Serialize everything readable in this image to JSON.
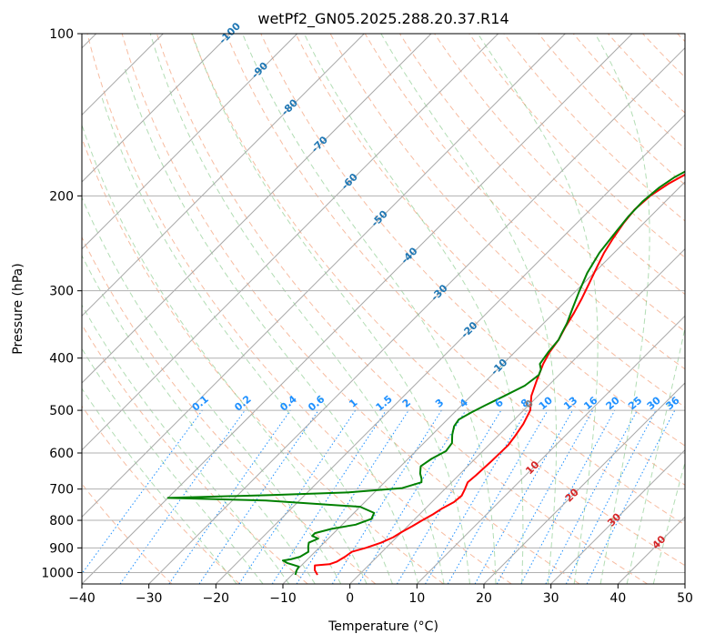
{
  "chart_data": {
    "type": "line",
    "title": "wetPf2_GN05.2025.288.20.37.R14",
    "xlabel": "Temperature (°C)",
    "ylabel": "Pressure (hPa)",
    "xlim": [
      -40,
      50
    ],
    "ylim": [
      1050,
      100
    ],
    "y_scale": "log",
    "grid": true,
    "x_ticks": [
      -40,
      -30,
      -20,
      -10,
      0,
      10,
      20,
      30,
      40,
      50
    ],
    "y_ticks": [
      1000,
      900,
      800,
      700,
      600,
      500,
      400,
      300,
      200,
      100
    ],
    "temperature_color": "#ff0000",
    "dewpoint_color": "#008000",
    "isotherm_label_color": "#1f77b4",
    "mixing_ratio_color": "#1e90ff",
    "moist_label_color": "#d62728",
    "mixing_ratio_labels": [
      "0.1",
      "0.2",
      "0.4",
      "0.6",
      "1",
      "1.5",
      "2",
      "3",
      "4",
      "6",
      "8",
      "10",
      "13",
      "16",
      "20",
      "25",
      "30",
      "36"
    ],
    "mixing_ratio_values": [
      0.1,
      0.2,
      0.4,
      0.6,
      1,
      1.5,
      2,
      3,
      4,
      6,
      8,
      10,
      13,
      16,
      20,
      25,
      30,
      36
    ],
    "isotherm_labels": [
      "-100",
      "-90",
      "-80",
      "-70",
      "-60",
      "-50",
      "-40",
      "-30",
      "-20",
      "-10",
      "0"
    ],
    "isotherm_values": [
      -100,
      -90,
      -80,
      -70,
      -60,
      -50,
      -40,
      -30,
      -20,
      -10,
      0
    ],
    "moist_labels": [
      "10",
      "20",
      "30",
      "40"
    ],
    "moist_values": [
      10,
      20,
      30,
      40
    ],
    "series": [
      {
        "key": "temperature",
        "points": [
          [
            -6.2,
            1010
          ],
          [
            -7.3,
            990
          ],
          [
            -8.0,
            970
          ],
          [
            -6.0,
            965
          ],
          [
            -5.3,
            955
          ],
          [
            -4.8,
            935
          ],
          [
            -4.5,
            915
          ],
          [
            -3.0,
            900
          ],
          [
            -1.5,
            880
          ],
          [
            -0.5,
            860
          ],
          [
            0.0,
            840
          ],
          [
            0.7,
            820
          ],
          [
            1.3,
            800
          ],
          [
            2.0,
            780
          ],
          [
            2.5,
            760
          ],
          [
            3.3,
            740
          ],
          [
            3.5,
            720
          ],
          [
            3.0,
            700
          ],
          [
            2.4,
            680
          ],
          [
            2.6,
            660
          ],
          [
            2.8,
            620
          ],
          [
            2.9,
            580
          ],
          [
            2.6,
            560
          ],
          [
            2.0,
            530
          ],
          [
            1.0,
            500
          ],
          [
            -1.0,
            470
          ],
          [
            -2.5,
            440
          ],
          [
            -4.0,
            410
          ],
          [
            -4.8,
            390
          ],
          [
            -5.3,
            370
          ],
          [
            -6.2,
            350
          ],
          [
            -7.0,
            330
          ],
          [
            -8.0,
            310
          ],
          [
            -9.2,
            290
          ],
          [
            -10.5,
            270
          ],
          [
            -11.5,
            255
          ],
          [
            -12.3,
            240
          ],
          [
            -13.0,
            225
          ],
          [
            -13.4,
            212
          ],
          [
            -13.1,
            200
          ],
          [
            -12.2,
            190
          ],
          [
            -11.0,
            182
          ],
          [
            -8.5,
            175
          ],
          [
            -5.5,
            170
          ],
          [
            -2.0,
            162
          ],
          [
            1.0,
            153
          ],
          [
            3.5,
            143
          ],
          [
            5.5,
            133
          ],
          [
            7.0,
            125
          ],
          [
            8.0,
            116
          ],
          [
            9.0,
            108
          ],
          [
            10.0,
            103
          ],
          [
            10.5,
            100
          ]
        ]
      },
      {
        "key": "dewpoint",
        "points": [
          [
            -9.5,
            1010
          ],
          [
            -10.0,
            990
          ],
          [
            -10.2,
            975
          ],
          [
            -12.5,
            960
          ],
          [
            -13.5,
            950
          ],
          [
            -12.5,
            945
          ],
          [
            -11.5,
            935
          ],
          [
            -11.0,
            915
          ],
          [
            -11.8,
            895
          ],
          [
            -12.3,
            880
          ],
          [
            -11.5,
            865
          ],
          [
            -12.8,
            855
          ],
          [
            -12.8,
            845
          ],
          [
            -11.0,
            830
          ],
          [
            -8.0,
            815
          ],
          [
            -6.5,
            795
          ],
          [
            -7.0,
            775
          ],
          [
            -10.0,
            755
          ],
          [
            -25.0,
            735
          ],
          [
            -40.0,
            727
          ],
          [
            -25.0,
            718
          ],
          [
            -14.0,
            710
          ],
          [
            -6.5,
            697
          ],
          [
            -4.5,
            680
          ],
          [
            -5.0,
            670
          ],
          [
            -6.0,
            655
          ],
          [
            -7.0,
            635
          ],
          [
            -6.5,
            615
          ],
          [
            -5.5,
            595
          ],
          [
            -5.8,
            575
          ],
          [
            -7.0,
            555
          ],
          [
            -8.0,
            535
          ],
          [
            -8.3,
            520
          ],
          [
            -7.5,
            505
          ],
          [
            -6.5,
            490
          ],
          [
            -5.0,
            470
          ],
          [
            -3.5,
            450
          ],
          [
            -3.0,
            430
          ],
          [
            -3.5,
            420
          ],
          [
            -4.5,
            410
          ],
          [
            -5.0,
            390
          ],
          [
            -5.3,
            370
          ],
          [
            -5.8,
            360
          ],
          [
            -6.5,
            345
          ],
          [
            -7.8,
            325
          ],
          [
            -9.5,
            300
          ],
          [
            -11.0,
            278
          ],
          [
            -12.2,
            255
          ],
          [
            -12.8,
            235
          ],
          [
            -13.3,
            218
          ],
          [
            -13.4,
            205
          ],
          [
            -13.0,
            193
          ],
          [
            -12.3,
            185
          ],
          [
            -11.0,
            177
          ],
          [
            -10.0,
            172
          ],
          [
            -10.5,
            165
          ],
          [
            -11.2,
            160
          ],
          [
            -11.0,
            155
          ],
          [
            -10.0,
            150
          ],
          [
            -8.0,
            145
          ],
          [
            -6.0,
            138
          ],
          [
            -4.5,
            130
          ],
          [
            -3.0,
            125
          ],
          [
            -1.0,
            118
          ],
          [
            0.5,
            113
          ],
          [
            2.0,
            108
          ],
          [
            3.5,
            103
          ],
          [
            4.5,
            100
          ]
        ]
      }
    ]
  }
}
